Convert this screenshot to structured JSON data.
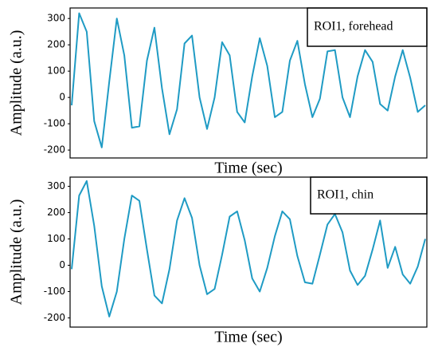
{
  "chart_data": [
    {
      "type": "line",
      "annotation": "ROI1, forehead",
      "xlabel": "Time (sec)",
      "ylabel": "Amplitude (a.u.)",
      "color": "#1f9bc4",
      "ylim": [
        -230,
        340
      ],
      "yticks": [
        -200,
        -100,
        0,
        100,
        200,
        300
      ],
      "values": [
        -30,
        320,
        250,
        -90,
        -190,
        60,
        300,
        160,
        -115,
        -110,
        140,
        265,
        35,
        -140,
        -45,
        205,
        235,
        0,
        -120,
        0,
        210,
        160,
        -55,
        -95,
        80,
        225,
        120,
        -75,
        -55,
        140,
        215,
        50,
        -75,
        -5,
        175,
        180,
        0,
        -75,
        80,
        180,
        135,
        -25,
        -50,
        80,
        180,
        75,
        -55,
        -30
      ]
    },
    {
      "type": "line",
      "annotation": "ROI1, chin",
      "xlabel": "Time (sec)",
      "ylabel": "Amplitude (a.u.)",
      "color": "#1f9bc4",
      "ylim": [
        -235,
        335
      ],
      "yticks": [
        -200,
        -100,
        0,
        100,
        200,
        300
      ],
      "values": [
        -15,
        265,
        320,
        150,
        -80,
        -195,
        -100,
        100,
        265,
        245,
        60,
        -115,
        -145,
        -15,
        170,
        255,
        180,
        0,
        -110,
        -90,
        40,
        185,
        205,
        95,
        -50,
        -100,
        -10,
        110,
        205,
        175,
        35,
        -65,
        -70,
        40,
        155,
        195,
        125,
        -20,
        -75,
        -40,
        60,
        170,
        -10,
        70,
        -35,
        -70,
        -5,
        100
      ]
    }
  ]
}
